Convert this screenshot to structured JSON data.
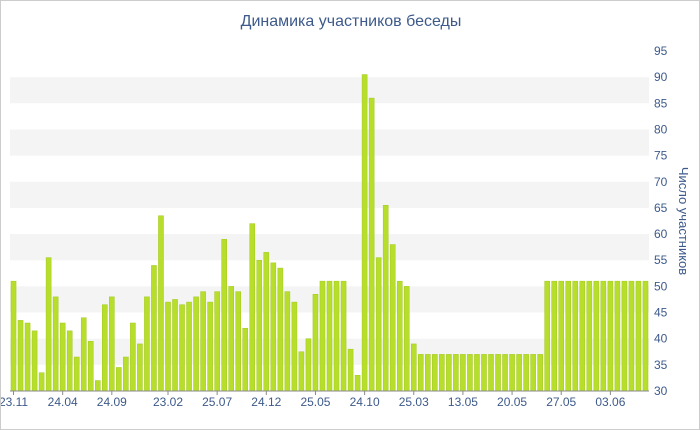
{
  "chart_data": {
    "type": "bar",
    "title": "Динамика участников беседы",
    "ylabel": "Число участников",
    "xlabel": "",
    "ylim": [
      30,
      95
    ],
    "yticks": [
      30,
      35,
      40,
      45,
      50,
      55,
      60,
      65,
      70,
      75,
      80,
      85,
      90,
      95
    ],
    "y_axis_side": "right",
    "x_tick_labels": [
      {
        "label": "23.11",
        "index": 0
      },
      {
        "label": "24.04",
        "index": 7
      },
      {
        "label": "24.09",
        "index": 14
      },
      {
        "label": "23.02",
        "index": 22
      },
      {
        "label": "25.07",
        "index": 29
      },
      {
        "label": "24.12",
        "index": 36
      },
      {
        "label": "25.05",
        "index": 43
      },
      {
        "label": "24.10",
        "index": 50
      },
      {
        "label": "25.03",
        "index": 57
      },
      {
        "label": "13.05",
        "index": 64
      },
      {
        "label": "20.05",
        "index": 71
      },
      {
        "label": "27.05",
        "index": 78
      },
      {
        "label": "03.06",
        "index": 85
      }
    ],
    "values": [
      51,
      43.5,
      43,
      41.5,
      33.5,
      55.5,
      48,
      43,
      41.5,
      36.5,
      44,
      39.5,
      32,
      46.5,
      48,
      34.5,
      36.5,
      43,
      39,
      48,
      54,
      63.5,
      47,
      47.5,
      46.5,
      47,
      48,
      49,
      47,
      49,
      59,
      50,
      49,
      42,
      62,
      55,
      56.5,
      54.5,
      53.5,
      49,
      47,
      37.5,
      40,
      48.5,
      51,
      51,
      51,
      51,
      38,
      33,
      90.5,
      86,
      55.5,
      65.5,
      58,
      51,
      50,
      39,
      37,
      37,
      37,
      37,
      37,
      37,
      37,
      37,
      37,
      37,
      37,
      37,
      37,
      37,
      37,
      37,
      37,
      37,
      51,
      51,
      51,
      51,
      51,
      51,
      51,
      51,
      51,
      51,
      51,
      51,
      51,
      51,
      51
    ],
    "bar_color": "#b6de2a",
    "bar_edge_color": "#a3c821",
    "band_color": "#f4f4f4",
    "text_color": "#3d5a8a",
    "grid": true
  }
}
